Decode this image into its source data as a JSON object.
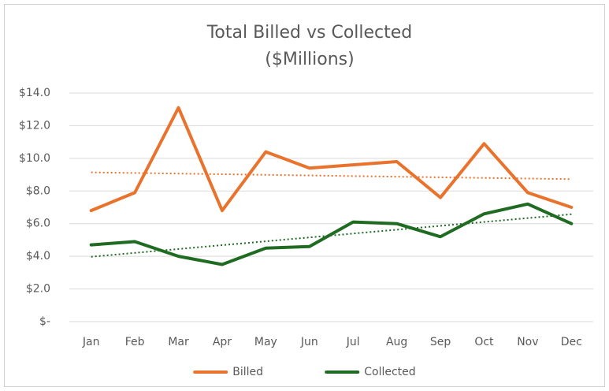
{
  "chart_data": {
    "type": "line",
    "title": "Total Billed vs Collected",
    "subtitle": "($Millions)",
    "categories": [
      "Jan",
      "Feb",
      "Mar",
      "Apr",
      "May",
      "Jun",
      "Jul",
      "Aug",
      "Sep",
      "Oct",
      "Nov",
      "Dec"
    ],
    "series": [
      {
        "name": "Billed",
        "color": "#e9732d",
        "values": [
          6.8,
          7.9,
          13.1,
          6.8,
          10.4,
          9.4,
          9.6,
          9.8,
          7.6,
          10.9,
          7.9,
          7.0
        ]
      },
      {
        "name": "Collected",
        "color": "#1f6b21",
        "values": [
          4.7,
          4.9,
          4.0,
          3.5,
          4.5,
          4.6,
          6.1,
          6.0,
          5.2,
          6.6,
          7.2,
          6.0
        ]
      }
    ],
    "ylim": [
      0,
      14
    ],
    "yticks": [
      {
        "value": 0,
        "label": "$-"
      },
      {
        "value": 2,
        "label": "$2.0"
      },
      {
        "value": 4,
        "label": "$4.0"
      },
      {
        "value": 6,
        "label": "$6.0"
      },
      {
        "value": 8,
        "label": "$8.0"
      },
      {
        "value": 10,
        "label": "$10.0"
      },
      {
        "value": 12,
        "label": "$12.0"
      },
      {
        "value": 14,
        "label": "$14.0"
      }
    ],
    "grid": true,
    "trendline": "linear",
    "legend": "bottom"
  }
}
